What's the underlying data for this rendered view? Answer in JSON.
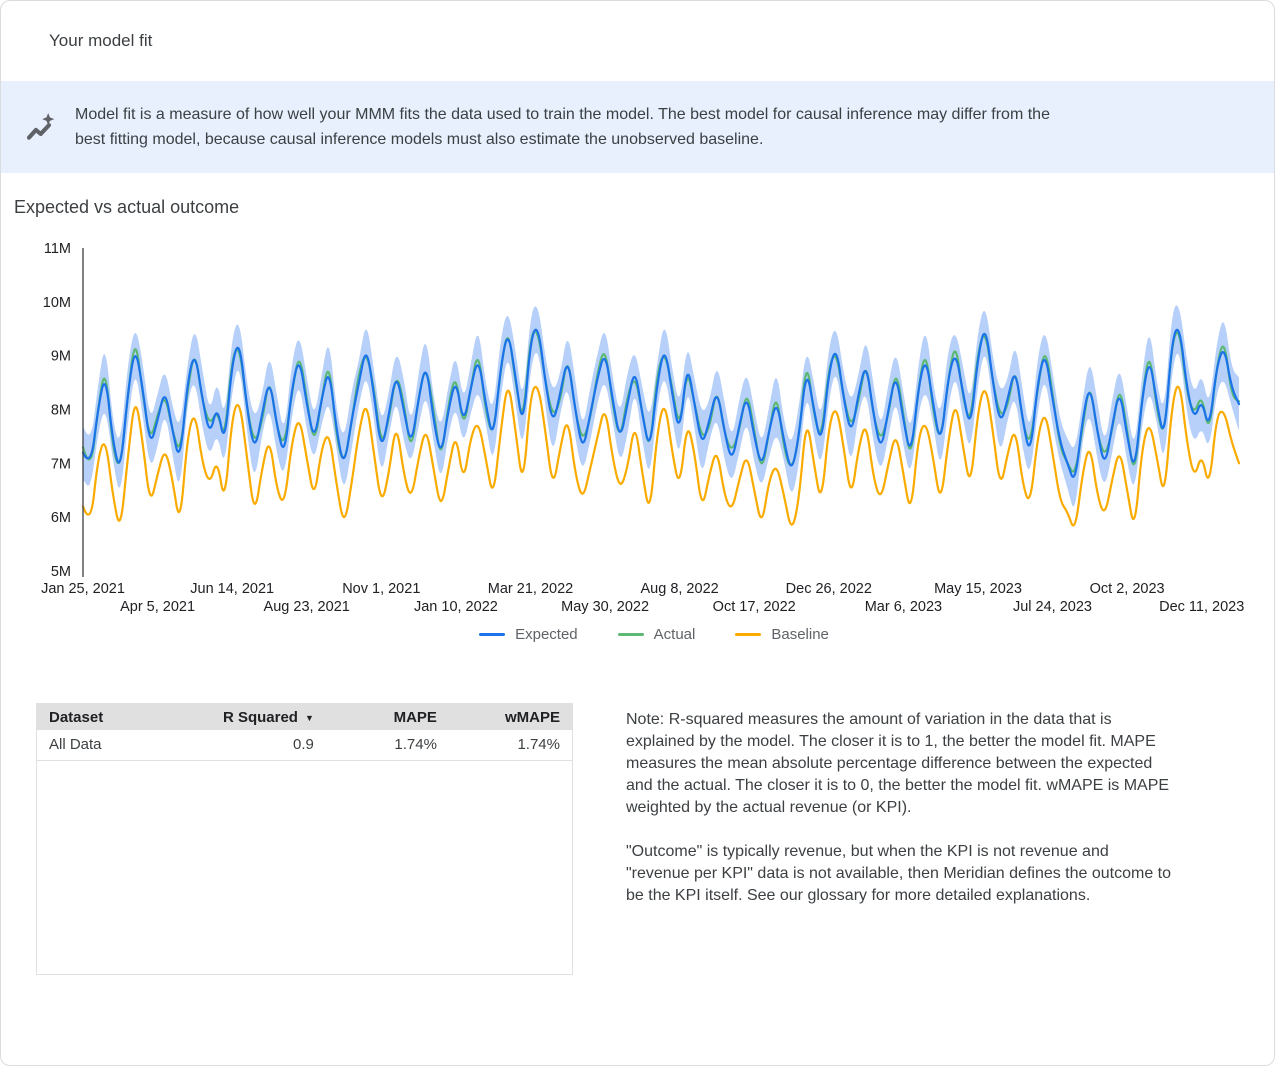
{
  "header": {
    "title": "Your model fit"
  },
  "banner": {
    "icon": "insights-icon",
    "lines": [
      "Model fit is a measure of how well your MMM fits the data used to train the model. The best model for causal inference may differ from the",
      "best fitting model, because causal inference models must also estimate the unobserved baseline."
    ]
  },
  "chart_section": {
    "title": "Expected vs actual outcome"
  },
  "legend": [
    {
      "label": "Expected",
      "color": "#1a73e8"
    },
    {
      "label": "Actual",
      "color": "#5bb974"
    },
    {
      "label": "Baseline",
      "color": "#f9ab00"
    }
  ],
  "chart_data": {
    "type": "line",
    "title": "Expected vs actual outcome",
    "x_axis": {
      "unit": "weeks",
      "start_label": "Jan 25, 2021",
      "end_label": "Dec 11, 2023",
      "n_points": 156
    },
    "values_unit": "millions",
    "ylim_millions": [
      5,
      11
    ],
    "grid": false,
    "legend_position": "bottom",
    "y_ticks": [
      {
        "label": "11M",
        "value": 11
      },
      {
        "label": "10M",
        "value": 10
      },
      {
        "label": "9M",
        "value": 9
      },
      {
        "label": "8M",
        "value": 8
      },
      {
        "label": "7M",
        "value": 7
      },
      {
        "label": "6M",
        "value": 6
      },
      {
        "label": "5M",
        "value": 5
      }
    ],
    "x_ticks": [
      {
        "label": "Jan 25, 2021",
        "week": 0,
        "row": 1
      },
      {
        "label": "Apr 5, 2021",
        "week": 10,
        "row": 2
      },
      {
        "label": "Jun 14, 2021",
        "week": 20,
        "row": 1
      },
      {
        "label": "Aug 23, 2021",
        "week": 30,
        "row": 2
      },
      {
        "label": "Nov 1, 2021",
        "week": 40,
        "row": 1
      },
      {
        "label": "Jan 10, 2022",
        "week": 50,
        "row": 2
      },
      {
        "label": "Mar 21, 2022",
        "week": 60,
        "row": 1
      },
      {
        "label": "May 30, 2022",
        "week": 70,
        "row": 2
      },
      {
        "label": "Aug 8, 2022",
        "week": 80,
        "row": 1
      },
      {
        "label": "Oct 17, 2022",
        "week": 90,
        "row": 2
      },
      {
        "label": "Dec 26, 2022",
        "week": 100,
        "row": 1
      },
      {
        "label": "Mar 6, 2023",
        "week": 110,
        "row": 2
      },
      {
        "label": "May 15, 2023",
        "week": 120,
        "row": 1
      },
      {
        "label": "Jul 24, 2023",
        "week": 130,
        "row": 2
      },
      {
        "label": "Oct 2, 2023",
        "week": 140,
        "row": 1
      },
      {
        "label": "Dec 11, 2023",
        "week": 150,
        "row": 2
      }
    ],
    "series": [
      {
        "name": "Expected",
        "color": "#1a73e8",
        "values": [
          7.2,
          6.9,
          8.0,
          8.7,
          7.4,
          6.8,
          8.3,
          9.2,
          8.4,
          7.3,
          7.8,
          8.4,
          7.6,
          7.0,
          8.5,
          9.1,
          8.2,
          7.5,
          8.1,
          7.3,
          8.9,
          9.3,
          8.0,
          7.2,
          7.9,
          8.6,
          7.7,
          7.1,
          8.4,
          9.0,
          8.1,
          7.4,
          8.2,
          8.8,
          7.6,
          6.9,
          7.8,
          8.5,
          9.2,
          8.3,
          7.2,
          7.9,
          8.7,
          8.0,
          7.3,
          8.2,
          8.9,
          7.8,
          7.1,
          8.0,
          8.6,
          7.7,
          8.4,
          9.0,
          8.1,
          7.4,
          8.8,
          9.5,
          8.6,
          7.6,
          9.3,
          9.6,
          8.5,
          7.7,
          8.3,
          9.0,
          8.0,
          7.2,
          7.9,
          8.6,
          9.1,
          8.2,
          7.4,
          8.1,
          8.8,
          7.9,
          7.2,
          8.5,
          9.2,
          8.3,
          7.5,
          8.9,
          8.1,
          7.3,
          7.8,
          8.4,
          7.6,
          7.0,
          7.7,
          8.3,
          7.5,
          6.9,
          7.6,
          8.2,
          7.4,
          6.8,
          7.5,
          8.8,
          8.0,
          7.3,
          8.7,
          9.2,
          8.2,
          7.5,
          8.3,
          8.9,
          7.9,
          7.2,
          8.0,
          8.7,
          7.8,
          7.1,
          8.4,
          9.0,
          8.1,
          7.3,
          8.6,
          9.1,
          8.3,
          7.6,
          9.0,
          9.6,
          8.5,
          7.7,
          8.2,
          8.8,
          7.8,
          7.1,
          8.5,
          9.1,
          8.2,
          7.4,
          7.0,
          6.6,
          7.8,
          8.5,
          7.6,
          6.9,
          7.7,
          8.4,
          7.5,
          6.8,
          8.2,
          9.0,
          8.1,
          7.4,
          9.3,
          9.6,
          8.4,
          7.8,
          8.2,
          7.6,
          8.8,
          9.2,
          8.4,
          8.1
        ]
      },
      {
        "name": "Actual",
        "color": "#5bb974",
        "values": [
          7.3,
          6.8,
          8.0,
          8.85,
          7.25,
          6.85,
          8.25,
          9.4,
          8.3,
          7.4,
          7.9,
          8.3,
          7.6,
          7.15,
          8.35,
          9.15,
          8.15,
          7.7,
          8.0,
          7.4,
          9.0,
          9.2,
          8.0,
          7.35,
          7.75,
          8.65,
          7.65,
          7.3,
          8.3,
          9.1,
          8.2,
          7.3,
          8.2,
          8.95,
          7.45,
          6.95,
          7.75,
          8.7,
          9.1,
          8.4,
          7.3,
          7.8,
          8.7,
          8.15,
          7.15,
          8.25,
          8.85,
          8.0,
          7.0,
          8.1,
          8.7,
          7.6,
          8.4,
          9.15,
          7.95,
          7.45,
          8.75,
          9.55,
          8.5,
          7.7,
          9.4,
          9.5,
          8.5,
          7.85,
          8.15,
          9.05,
          7.95,
          7.4,
          7.8,
          8.7,
          9.2,
          8.1,
          7.4,
          8.25,
          8.65,
          7.95,
          7.15,
          8.7,
          9.1,
          8.4,
          7.6,
          8.8,
          8.1,
          7.45,
          7.65,
          8.45,
          7.55,
          7.2,
          7.6,
          8.4,
          7.6,
          6.8,
          7.6,
          8.35,
          7.25,
          6.85,
          7.45,
          9.0,
          7.9,
          7.4,
          8.8,
          9.1,
          8.2,
          7.65,
          8.15,
          8.95,
          7.85,
          7.4,
          7.9,
          8.8,
          7.9,
          7.0,
          8.4,
          9.15,
          7.95,
          7.35,
          8.55,
          9.3,
          8.2,
          7.7,
          9.1,
          9.5,
          8.5,
          7.85,
          8.05,
          8.85,
          7.75,
          7.3,
          8.4,
          9.2,
          8.3,
          7.3,
          7.0,
          6.75,
          7.65,
          8.55,
          7.55,
          7.1,
          7.6,
          8.5,
          7.6,
          6.7,
          8.2,
          9.15,
          7.95,
          7.45,
          9.25,
          9.55,
          8.3,
          7.9,
          8.3,
          7.5,
          8.8,
          9.35,
          8.25,
          8.15
        ]
      },
      {
        "name": "Baseline",
        "color": "#f9ab00",
        "values": [
          6.2,
          5.8,
          7.1,
          7.5,
          6.4,
          5.7,
          7.1,
          8.3,
          7.4,
          6.2,
          6.8,
          7.3,
          6.7,
          5.8,
          7.5,
          8.0,
          7.0,
          6.6,
          7.1,
          6.2,
          7.9,
          8.2,
          7.1,
          6.0,
          6.9,
          7.5,
          6.5,
          6.2,
          7.4,
          7.9,
          7.1,
          6.3,
          7.3,
          7.6,
          6.6,
          5.8,
          6.6,
          7.6,
          8.2,
          7.2,
          6.2,
          6.8,
          7.8,
          6.8,
          6.3,
          7.1,
          7.7,
          6.9,
          6.1,
          6.9,
          7.6,
          6.6,
          7.5,
          7.8,
          7.1,
          6.3,
          7.6,
          8.6,
          7.6,
          6.5,
          8.3,
          8.5,
          7.6,
          6.5,
          7.3,
          7.9,
          6.8,
          6.3,
          6.9,
          7.5,
          8.1,
          7.1,
          6.5,
          6.9,
          7.8,
          6.8,
          6.0,
          7.6,
          8.2,
          7.2,
          6.5,
          7.8,
          7.2,
          6.1,
          6.8,
          7.3,
          6.4,
          6.1,
          6.7,
          7.2,
          6.5,
          5.8,
          6.7,
          7.0,
          6.4,
          5.7,
          6.3,
          7.9,
          7.0,
          6.2,
          7.7,
          8.1,
          7.3,
          6.3,
          7.3,
          7.8,
          6.7,
          6.3,
          7.0,
          7.6,
          6.8,
          6.0,
          7.5,
          7.8,
          7.1,
          6.2,
          7.4,
          8.2,
          7.3,
          6.5,
          8.0,
          8.5,
          7.6,
          6.5,
          7.2,
          7.7,
          6.6,
          6.2,
          7.5,
          8.0,
          7.2,
          6.3,
          6.1,
          5.7,
          6.8,
          7.4,
          6.4,
          6.0,
          6.7,
          7.3,
          6.5,
          5.7,
          7.3,
          7.8,
          7.1,
          6.3,
          8.1,
          8.6,
          7.4,
          6.7,
          7.2,
          6.5,
          7.9,
          8.0,
          7.4,
          7.0
        ]
      }
    ],
    "credible_interval": {
      "around": "Expected",
      "color": "#aecbfa",
      "halfwidth_millions": [
        0.5,
        0.4,
        0.45,
        0.6,
        0.35,
        0.5,
        0.55,
        0.4,
        0.5,
        0.45,
        0.5,
        0.4,
        0.45,
        0.6,
        0.35,
        0.5,
        0.55,
        0.4,
        0.5,
        0.45,
        0.5,
        0.4,
        0.45,
        0.6,
        0.35,
        0.5,
        0.55,
        0.4,
        0.5,
        0.45,
        0.5,
        0.4,
        0.45,
        0.6,
        0.35,
        0.5,
        0.55,
        0.4,
        0.5,
        0.45,
        0.5,
        0.4,
        0.45,
        0.6,
        0.35,
        0.5,
        0.55,
        0.4,
        0.5,
        0.45,
        0.5,
        0.4,
        0.45,
        0.6,
        0.35,
        0.5,
        0.55,
        0.4,
        0.5,
        0.45,
        0.5,
        0.4,
        0.45,
        0.6,
        0.35,
        0.5,
        0.55,
        0.4,
        0.5,
        0.45,
        0.5,
        0.4,
        0.45,
        0.6,
        0.35,
        0.5,
        0.55,
        0.4,
        0.5,
        0.45,
        0.5,
        0.4,
        0.45,
        0.6,
        0.35,
        0.5,
        0.55,
        0.4,
        0.5,
        0.45,
        0.5,
        0.4,
        0.45,
        0.6,
        0.35,
        0.5,
        0.55,
        0.4,
        0.5,
        0.45,
        0.5,
        0.4,
        0.45,
        0.6,
        0.35,
        0.5,
        0.55,
        0.4,
        0.5,
        0.45,
        0.5,
        0.4,
        0.45,
        0.6,
        0.35,
        0.5,
        0.55,
        0.4,
        0.5,
        0.45,
        0.5,
        0.4,
        0.45,
        0.6,
        0.35,
        0.5,
        0.55,
        0.4,
        0.5,
        0.45,
        0.5,
        0.4,
        0.45,
        0.6,
        0.35,
        0.5,
        0.55,
        0.4,
        0.5,
        0.45,
        0.5,
        0.4,
        0.45,
        0.6,
        0.35,
        0.5,
        0.55,
        0.4,
        0.5,
        0.45,
        0.5,
        0.4,
        0.45,
        0.6,
        0.35,
        0.5
      ]
    }
  },
  "metrics_table": {
    "sort_indicator": "▼",
    "columns": [
      {
        "label": "Dataset",
        "align": "left"
      },
      {
        "label": "R Squared",
        "align": "right",
        "sorted": "desc"
      },
      {
        "label": "MAPE",
        "align": "right"
      },
      {
        "label": "wMAPE",
        "align": "right"
      }
    ],
    "rows": [
      [
        "All Data",
        "0.9",
        "1.74%",
        "1.74%"
      ]
    ]
  },
  "note": {
    "paragraphs": [
      "Note: R-squared measures the amount of variation in the data that is explained by the model. The closer it is to 1, the better the model fit. MAPE measures the mean absolute percentage difference between the expected and the actual. The closer it is to 0, the better the model fit. wMAPE is MAPE weighted by the actual revenue (or KPI).",
      "\"Outcome\" is typically revenue, but when the KPI is not revenue and \"revenue per KPI\" data is not available, then Meridian defines the outcome to be the KPI itself. See our glossary for more detailed explanations."
    ]
  }
}
